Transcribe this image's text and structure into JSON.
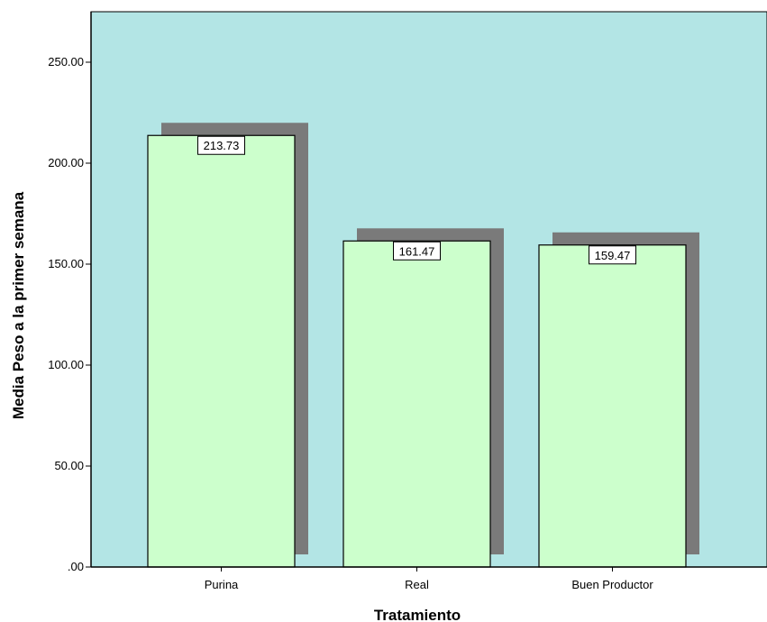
{
  "chart_data": {
    "type": "bar",
    "categories": [
      "Purina",
      "Real",
      "Buen Productor"
    ],
    "values": [
      213.73,
      161.47,
      159.47
    ],
    "data_labels": [
      "213.73",
      "161.47",
      "159.47"
    ],
    "xlabel": "Tratamiento",
    "ylabel": "Media Peso a la primer semana",
    "ylim": [
      0,
      275
    ],
    "yticks": [
      0,
      50,
      100,
      150,
      200,
      250
    ],
    "ytick_labels": [
      ".00",
      "50.00",
      "100.00",
      "150.00",
      "200.00",
      "250.00"
    ],
    "shadow_3d": true,
    "grid": false,
    "legend": "none",
    "colors": {
      "plot_background": "#b3e5e5",
      "bar_fill": "#ccffcc",
      "bar_stroke": "#000000",
      "bar_shadow": "#7a7a7a"
    }
  }
}
